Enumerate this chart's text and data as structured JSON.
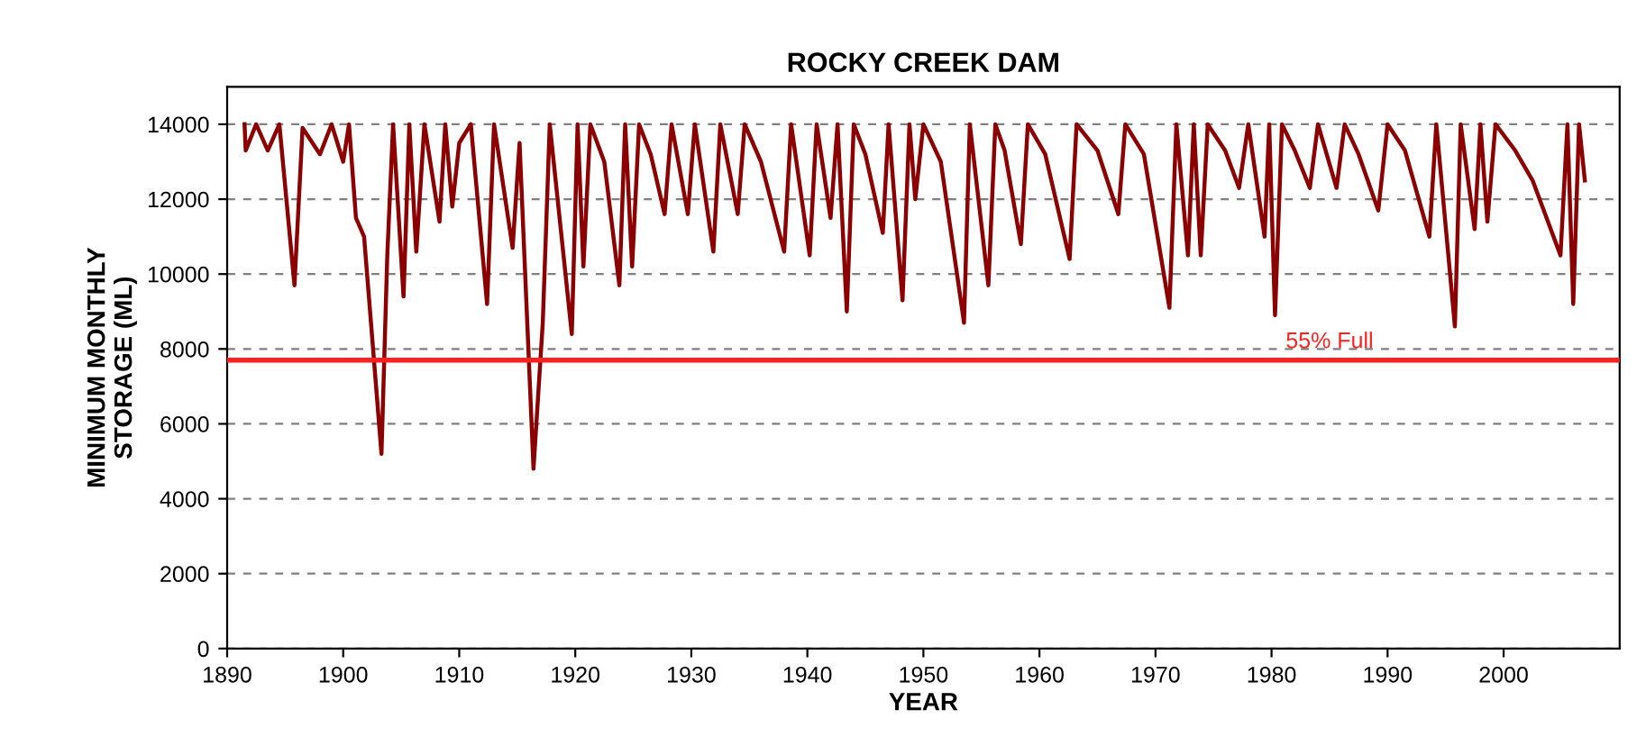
{
  "chart_data": {
    "type": "line",
    "title": "ROCKY CREEK DAM",
    "xlabel": "YEAR",
    "ylabel": "MINIMUM MONTHLY\nSTORAGE (ML)",
    "xlim": [
      1890,
      2010
    ],
    "xticks": [
      1890,
      1900,
      1910,
      1920,
      1930,
      1940,
      1950,
      1960,
      1970,
      1980,
      1990,
      2000
    ],
    "ylim": [
      0,
      15000
    ],
    "yticks": [
      0,
      2000,
      4000,
      6000,
      8000,
      10000,
      12000,
      14000
    ],
    "grid": "y",
    "marker": "none",
    "line_style": "solid",
    "ref_lines": [
      {
        "axis": "y",
        "value": 7700,
        "label": "55% Full",
        "color": "#ff2020",
        "line_style": "solid"
      }
    ],
    "series": [
      {
        "color": "#8b0000",
        "x": [
          1891.5,
          1891.6,
          1892.5,
          1893.5,
          1894.5,
          1895.8,
          1896.5,
          1898,
          1899,
          1900,
          1900.5,
          1901.1,
          1901.8,
          1903.3,
          1903.8,
          1904.3,
          1905.2,
          1905.7,
          1906.3,
          1907,
          1908.3,
          1908.8,
          1909.4,
          1910,
          1911,
          1912.4,
          1913,
          1914.6,
          1915.2,
          1916.4,
          1917.2,
          1917.8,
          1919.7,
          1920.2,
          1920.7,
          1921.3,
          1922.5,
          1923.8,
          1924.3,
          1924.9,
          1925.5,
          1926.5,
          1927.7,
          1928.3,
          1929.7,
          1930.3,
          1931.9,
          1932.5,
          1934.0,
          1934.6,
          1936,
          1938.0,
          1938.6,
          1940.2,
          1940.8,
          1942.0,
          1942.6,
          1943.4,
          1944,
          1945,
          1946.5,
          1947,
          1948.2,
          1948.8,
          1949.3,
          1950,
          1951.5,
          1953.5,
          1954,
          1955.6,
          1956.2,
          1957,
          1958.4,
          1959,
          1960.5,
          1962.6,
          1963.2,
          1965,
          1966.8,
          1967.4,
          1969,
          1971.2,
          1971.8,
          1972.8,
          1973.3,
          1973.9,
          1974.5,
          1976,
          1977.2,
          1978,
          1979.4,
          1979.8,
          1980.3,
          1980.9,
          1982,
          1983.3,
          1984,
          1985.6,
          1986.3,
          1987.5,
          1989.2,
          1990,
          1991.5,
          1993.6,
          1994.2,
          1995.8,
          1996.3,
          1997.5,
          1998,
          1998.6,
          1999.3,
          2001,
          2002.5,
          2004.9,
          2005.5,
          2006,
          2006.5,
          2007
        ],
        "values": [
          14000,
          13300,
          14000,
          13300,
          14000,
          9700,
          13900,
          13200,
          14000,
          13000,
          14000,
          11500,
          11000,
          5200,
          10500,
          14000,
          9400,
          14000,
          10600,
          14000,
          11400,
          14000,
          11800,
          13500,
          14000,
          9200,
          14000,
          10700,
          13500,
          4800,
          8700,
          14000,
          8400,
          14000,
          10200,
          14000,
          13000,
          9700,
          14000,
          10200,
          14000,
          13200,
          11600,
          14000,
          11600,
          14000,
          10600,
          14000,
          11600,
          14000,
          13000,
          10600,
          14000,
          10500,
          14000,
          11500,
          14000,
          9000,
          14000,
          13200,
          11100,
          14000,
          9300,
          14000,
          12000,
          14000,
          13000,
          8700,
          14000,
          9700,
          14000,
          13300,
          10800,
          14000,
          13200,
          10400,
          14000,
          13300,
          11600,
          14000,
          13200,
          9100,
          14000,
          10500,
          14000,
          10500,
          14000,
          13300,
          12300,
          14000,
          11000,
          14000,
          8900,
          14000,
          13300,
          12300,
          14000,
          12300,
          14000,
          13200,
          11700,
          14000,
          13300,
          11000,
          14000,
          8600,
          14000,
          11200,
          14000,
          11400,
          14000,
          13300,
          12500,
          10500,
          14000,
          9200,
          14000,
          12500
        ]
      }
    ]
  }
}
